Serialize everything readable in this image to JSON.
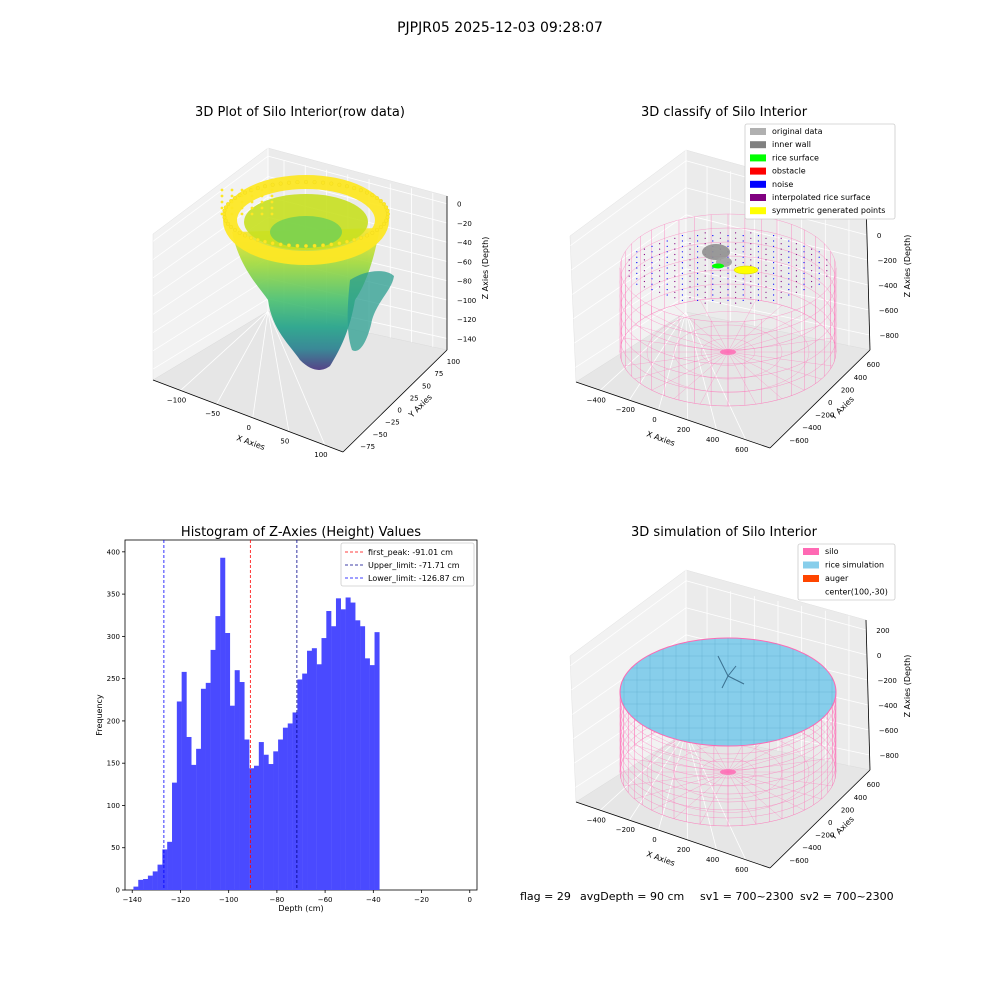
{
  "figure": {
    "suptitle": "PJPJR05 2025-12-03 09:28:07",
    "footer": {
      "flag": "flag = 29",
      "avg_depth": "avgDepth = 90 cm",
      "sv1": "sv1 = 700~2300",
      "sv2": "sv2 = 700~2300"
    }
  },
  "chart_data": [
    {
      "type": "scatter",
      "projection": "3d",
      "title": "3D Plot of Silo Interior(row data)",
      "xlabel": "X Axies",
      "ylabel": "Y Axies",
      "zlabel": "Z Axies (Depth)",
      "xticks": [
        "−100",
        "−50",
        "0",
        "50",
        "100"
      ],
      "yticks": [
        "−75",
        "−50",
        "−25",
        "0",
        "25",
        "50",
        "75",
        "100"
      ],
      "zticks": [
        "0",
        "−20",
        "−40",
        "−60",
        "−80",
        "−100",
        "−120",
        "−140"
      ],
      "xlim": [
        -130,
        100
      ],
      "ylim": [
        -80,
        110
      ],
      "zlim": [
        -145,
        5
      ],
      "colormap": "viridis"
    },
    {
      "type": "scatter",
      "projection": "3d",
      "title": "3D classify of Silo Interior",
      "xlabel": "X Axies",
      "ylabel": "Y Axies",
      "zlabel": "Z Axies (Depth)",
      "xticks": [
        "−400",
        "−200",
        "0",
        "200",
        "400",
        "600"
      ],
      "yticks": [
        "−600",
        "−400",
        "−200",
        "0",
        "200",
        "400",
        "600"
      ],
      "zticks": [
        "200",
        "0",
        "−200",
        "−400",
        "−600",
        "−800"
      ],
      "legend": {
        "position": "upper right",
        "entries": [
          {
            "label": "original data",
            "color": "#b0b0b0"
          },
          {
            "label": "inner wall",
            "color": "#808080"
          },
          {
            "label": "rice surface",
            "color": "#00ff00"
          },
          {
            "label": "obstacle",
            "color": "#ff0000"
          },
          {
            "label": "noise",
            "color": "#0000ff"
          },
          {
            "label": "interpolated rice surface",
            "color": "#800080"
          },
          {
            "label": "symmetric generated points",
            "color": "#ffff00"
          }
        ]
      }
    },
    {
      "type": "bar",
      "title": "Histogram of Z-Axies (Height) Values",
      "xlabel": "Depth (cm)",
      "ylabel": "Frequency",
      "xlim": [
        -143,
        3
      ],
      "ylim": [
        0,
        414
      ],
      "xticks": [
        -140,
        -120,
        -100,
        -80,
        -60,
        -40,
        -20,
        0
      ],
      "yticks": [
        0,
        50,
        100,
        150,
        200,
        250,
        300,
        350,
        400
      ],
      "bar_color": "#4a4aff",
      "bins_start": -139.5,
      "bin_width": 2,
      "values": [
        4,
        12,
        13,
        17,
        22,
        30,
        48,
        57,
        127,
        223,
        258,
        181,
        148,
        167,
        238,
        245,
        284,
        324,
        393,
        304,
        218,
        260,
        246,
        178,
        144,
        147,
        175,
        160,
        149,
        164,
        178,
        192,
        197,
        210,
        249,
        256,
        283,
        286,
        267,
        298,
        330,
        312,
        345,
        332,
        346,
        340,
        319,
        312,
        274,
        266,
        305
      ],
      "vlines": [
        {
          "x": -91.01,
          "color": "#ff0000",
          "label": "first_peak: -91.01 cm"
        },
        {
          "x": -71.71,
          "color": "#00008b",
          "label": "Upper_limit: -71.71 cm"
        },
        {
          "x": -126.87,
          "color": "#0000ff",
          "label": "Lower_limit: -126.87 cm"
        }
      ],
      "legend_position": "upper right"
    },
    {
      "type": "surface",
      "projection": "3d",
      "title": "3D simulation of Silo Interior",
      "xlabel": "X Axies",
      "ylabel": "Y Axies",
      "zlabel": "Z Axies (Depth)",
      "xticks": [
        "−400",
        "−200",
        "0",
        "200",
        "400",
        "600"
      ],
      "yticks": [
        "−600",
        "−400",
        "−200",
        "0",
        "200",
        "400",
        "600"
      ],
      "zticks": [
        "200",
        "0",
        "−200",
        "−400",
        "−600",
        "−800"
      ],
      "legend": {
        "position": "upper right",
        "entries": [
          {
            "label": "silo",
            "color": "#ff69b4"
          },
          {
            "label": "rice simulation",
            "color": "#87ceeb"
          },
          {
            "label": "auger",
            "color": "#ff4500"
          },
          {
            "label": "center(100,-30)",
            "color": ""
          }
        ]
      }
    }
  ]
}
